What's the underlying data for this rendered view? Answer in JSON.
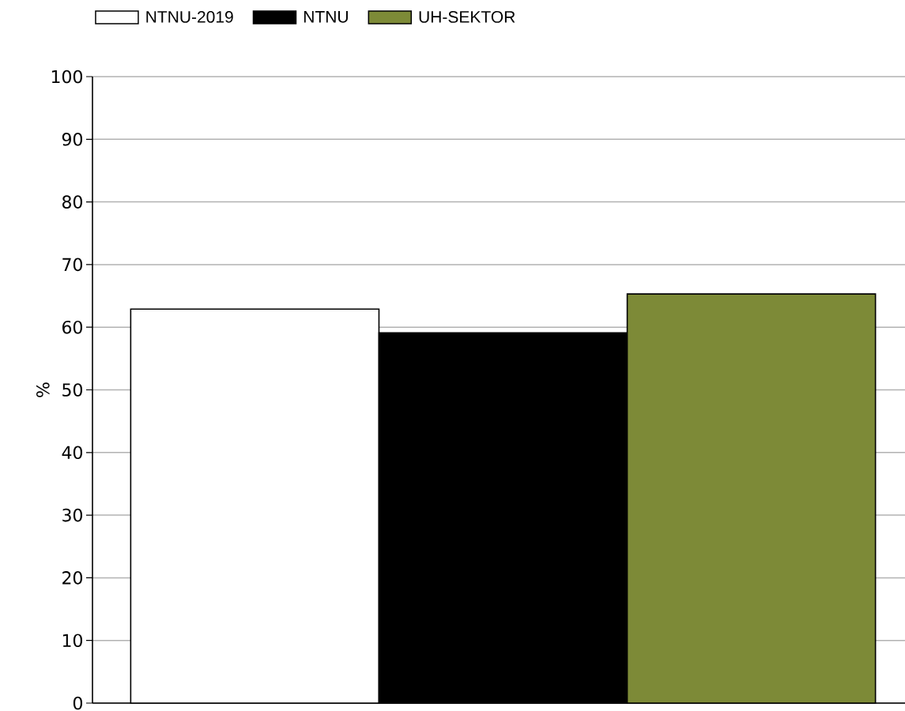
{
  "chart_data": {
    "type": "bar",
    "ylabel": "%",
    "categories": [
      null
    ],
    "series": [
      {
        "name": "NTNU-2019",
        "color": "#ffffff",
        "values": [
          62.9
        ]
      },
      {
        "name": "NTNU",
        "color": "#000000",
        "values": [
          59.1
        ]
      },
      {
        "name": "UH-SEKTOR",
        "color": "#7d8a37",
        "values": [
          65.3
        ]
      }
    ],
    "ylim": [
      0,
      100
    ],
    "yticks": [
      0,
      10,
      20,
      30,
      40,
      50,
      60,
      70,
      80,
      90,
      100
    ],
    "grid": "y",
    "legend": "top"
  }
}
